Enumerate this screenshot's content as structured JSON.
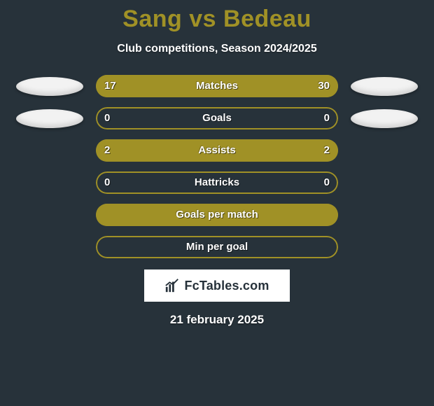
{
  "background_color": "#27323a",
  "title": {
    "player1": "Sang",
    "vs": "vs",
    "player2": "Bedeau",
    "player1_color": "#a09126",
    "vs_color": "#a09126",
    "player2_color": "#a09126",
    "fontsize": 34
  },
  "subtitle": "Club competitions, Season 2024/2025",
  "bar": {
    "track_width": 346,
    "track_height": 32,
    "border_radius": 16,
    "left_color": "#a09126",
    "right_color": "#a09126",
    "border_color_left": "#a09126",
    "border_color_right": "#a09126",
    "label_color": "#ffffff",
    "value_color": "#ffffff"
  },
  "side_flag": {
    "ellipse_color": "#f2f2f2",
    "width": 96,
    "height": 27
  },
  "stats": [
    {
      "label": "Matches",
      "left_value": 17,
      "right_value": 30,
      "left_display": "17",
      "right_display": "30",
      "left_pct": 36.17,
      "right_pct": 63.83,
      "show_flags": true
    },
    {
      "label": "Goals",
      "left_value": 0,
      "right_value": 0,
      "left_display": "0",
      "right_display": "0",
      "left_pct": 0,
      "right_pct": 0,
      "show_flags": true
    },
    {
      "label": "Assists",
      "left_value": 2,
      "right_value": 2,
      "left_display": "2",
      "right_display": "2",
      "left_pct": 50,
      "right_pct": 50,
      "show_flags": false
    },
    {
      "label": "Hattricks",
      "left_value": 0,
      "right_value": 0,
      "left_display": "0",
      "right_display": "0",
      "left_pct": 0,
      "right_pct": 0,
      "show_flags": false
    },
    {
      "label": "Goals per match",
      "left_value": null,
      "right_value": null,
      "left_display": "",
      "right_display": "",
      "left_pct": 100,
      "right_pct": 0,
      "show_flags": false
    },
    {
      "label": "Min per goal",
      "left_value": null,
      "right_value": null,
      "left_display": "",
      "right_display": "",
      "left_pct": 0,
      "right_pct": 0,
      "show_flags": false
    }
  ],
  "logo_text": "FcTables.com",
  "date": "21 february 2025"
}
